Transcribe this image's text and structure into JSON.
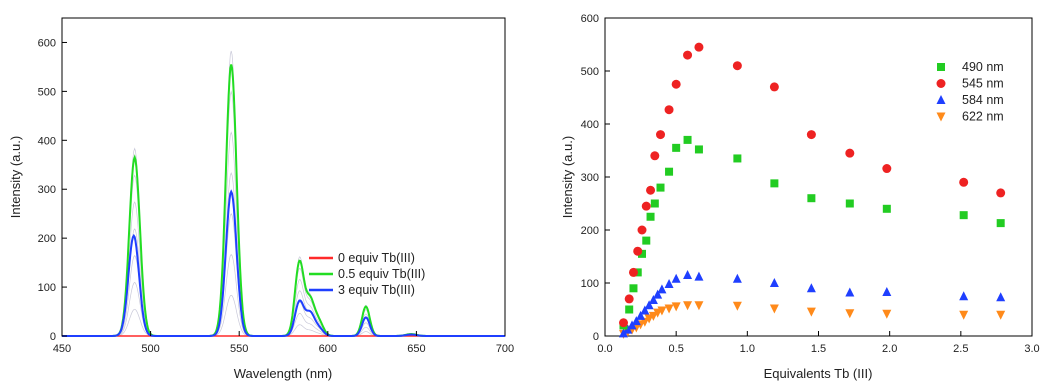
{
  "chart_data": [
    {
      "type": "line",
      "xlabel": "Wavelength (nm)",
      "ylabel": "Intensity (a.u.)",
      "xlim": [
        450,
        700
      ],
      "ylim": [
        0,
        650
      ],
      "xticks": [
        450,
        500,
        550,
        600,
        650,
        700
      ],
      "yticks": [
        0,
        100,
        200,
        300,
        400,
        500,
        600
      ],
      "grid": false,
      "legend_position": "right",
      "series": [
        {
          "name": "0 equiv Tb(III)",
          "color": "#ff2a2a",
          "peaks": []
        },
        {
          "name": "0.5 equiv Tb(III)",
          "color": "#22dd22",
          "peaks": [
            [
              491,
              365,
              3
            ],
            [
              545.5,
              555,
              3
            ],
            [
              584,
              150,
              2.5
            ],
            [
              590,
              70,
              2.5
            ],
            [
              595,
              28,
              2.5
            ],
            [
              621.5,
              60,
              2.2
            ],
            [
              647,
              4,
              3
            ]
          ]
        },
        {
          "name": "3 equiv Tb(III)",
          "color": "#1f3fff",
          "peaks": [
            [
              490.5,
              205,
              3
            ],
            [
              545.5,
              295,
              3
            ],
            [
              584,
              70,
              2.5
            ],
            [
              590,
              45,
              2.5
            ],
            [
              595,
              15,
              2.5
            ],
            [
              621.5,
              38,
              2.2
            ],
            [
              647,
              3,
              3
            ]
          ]
        }
      ],
      "titration_color": "#c9c9d9",
      "titration_scales": [
        0.15,
        0.3,
        0.45,
        0.6,
        0.75,
        0.9,
        1.05
      ]
    },
    {
      "type": "scatter",
      "xlabel": "Equivalents Tb (III)",
      "ylabel": "Intensity (a.u.)",
      "xlim": [
        0.0,
        3.0
      ],
      "ylim": [
        0,
        600
      ],
      "xticks": [
        "0.0",
        "0.5",
        "1.0",
        "1.5",
        "2.0",
        "2.5",
        "3.0"
      ],
      "yticks": [
        0,
        100,
        200,
        300,
        400,
        500,
        600
      ],
      "grid": false,
      "legend_position": "top-right",
      "series": [
        {
          "name": "490 nm",
          "color": "#22cc22",
          "marker": "square",
          "x": [
            0.13,
            0.17,
            0.2,
            0.23,
            0.26,
            0.29,
            0.32,
            0.35,
            0.39,
            0.45,
            0.5,
            0.58,
            0.66,
            0.93,
            1.19,
            1.45,
            1.72,
            1.98,
            2.52,
            2.78
          ],
          "y": [
            20,
            50,
            90,
            120,
            155,
            180,
            225,
            250,
            280,
            310,
            355,
            370,
            352,
            335,
            288,
            260,
            250,
            240,
            228,
            213
          ]
        },
        {
          "name": "545 nm",
          "color": "#ee2222",
          "marker": "circle",
          "x": [
            0.13,
            0.17,
            0.2,
            0.23,
            0.26,
            0.29,
            0.32,
            0.35,
            0.39,
            0.45,
            0.5,
            0.58,
            0.66,
            0.93,
            1.19,
            1.45,
            1.72,
            1.98,
            2.52,
            2.78
          ],
          "y": [
            25,
            70,
            120,
            160,
            200,
            245,
            275,
            340,
            380,
            427,
            475,
            530,
            545,
            510,
            470,
            380,
            345,
            316,
            290,
            270
          ]
        },
        {
          "name": "584 nm",
          "color": "#1f3fff",
          "marker": "triangle-up",
          "x": [
            0.13,
            0.16,
            0.19,
            0.22,
            0.25,
            0.28,
            0.31,
            0.34,
            0.37,
            0.4,
            0.45,
            0.5,
            0.58,
            0.66,
            0.93,
            1.19,
            1.45,
            1.72,
            1.98,
            2.52,
            2.78
          ],
          "y": [
            5,
            12,
            20,
            28,
            38,
            48,
            58,
            68,
            78,
            88,
            98,
            108,
            115,
            112,
            108,
            100,
            90,
            82,
            83,
            75,
            73
          ]
        },
        {
          "name": "622 nm",
          "color": "#ff8a1a",
          "marker": "triangle-down",
          "x": [
            0.13,
            0.16,
            0.19,
            0.22,
            0.25,
            0.28,
            0.31,
            0.34,
            0.37,
            0.4,
            0.45,
            0.5,
            0.58,
            0.66,
            0.93,
            1.19,
            1.45,
            1.72,
            1.98,
            2.52,
            2.78
          ],
          "y": [
            4,
            8,
            12,
            16,
            22,
            27,
            33,
            38,
            44,
            48,
            52,
            56,
            58,
            58,
            57,
            52,
            46,
            43,
            42,
            40,
            40
          ]
        }
      ]
    }
  ]
}
